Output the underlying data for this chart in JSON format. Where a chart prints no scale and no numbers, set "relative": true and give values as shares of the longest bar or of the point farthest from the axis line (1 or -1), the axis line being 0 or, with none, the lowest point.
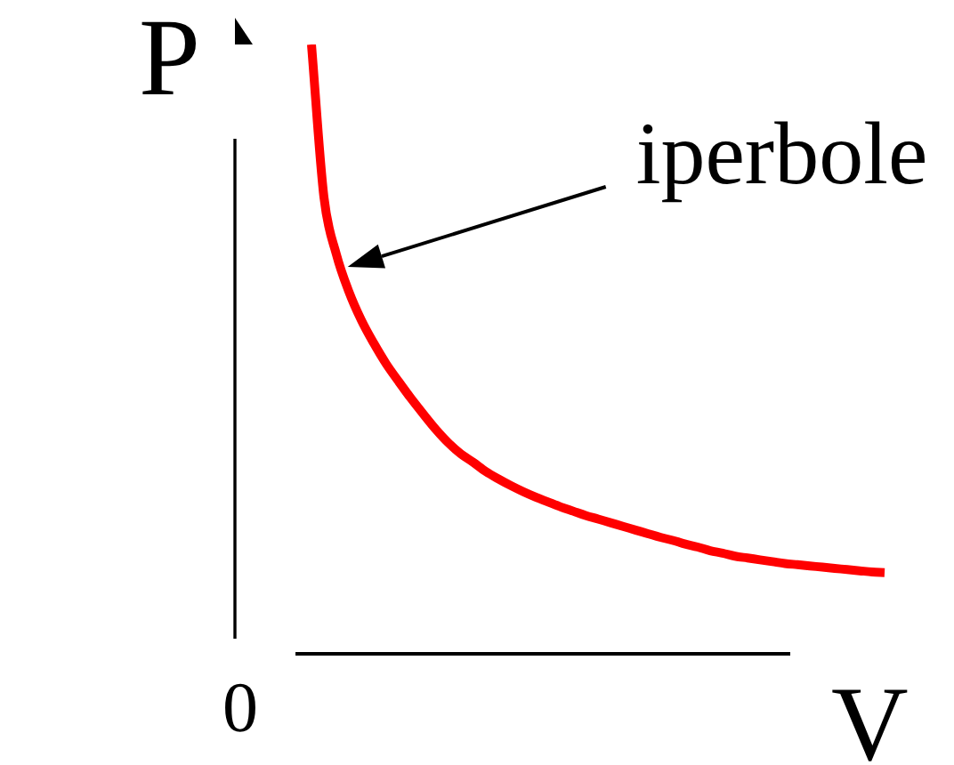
{
  "chart_data": {
    "type": "line",
    "xlabel": "V",
    "ylabel": "P",
    "relative": true,
    "color": "#ff0000",
    "marker": "none",
    "categories": [
      null,
      null,
      null,
      null,
      null,
      null,
      null,
      null,
      null,
      null,
      null,
      null,
      null,
      null,
      null,
      null,
      null,
      null,
      null,
      null,
      null,
      null,
      null,
      null,
      null,
      null,
      null,
      null,
      null,
      null,
      null,
      null,
      null,
      null,
      null,
      null,
      null,
      null,
      null,
      null,
      null,
      null,
      null,
      null,
      null,
      null,
      null
    ],
    "values": [
      1,
      0.749,
      0.655,
      0.594,
      0.547,
      0.509,
      0.475,
      0.446,
      0.418,
      0.392,
      0.367,
      0.345,
      0.327,
      0.313,
      0.298,
      0.286,
      0.275,
      0.265,
      0.256,
      0.248,
      0.24,
      0.233,
      0.226,
      0.22,
      0.214,
      0.208,
      0.202,
      0.196,
      0.19,
      0.185,
      0.179,
      0.174,
      0.168,
      0.164,
      0.159,
      0.156,
      0.153,
      0.15,
      0.147,
      0.145,
      0.143,
      0.141,
      0.139,
      0.137,
      0.135,
      0.133,
      0.132
    ],
    "annotations": [
      "iperbole",
      "0"
    ]
  }
}
